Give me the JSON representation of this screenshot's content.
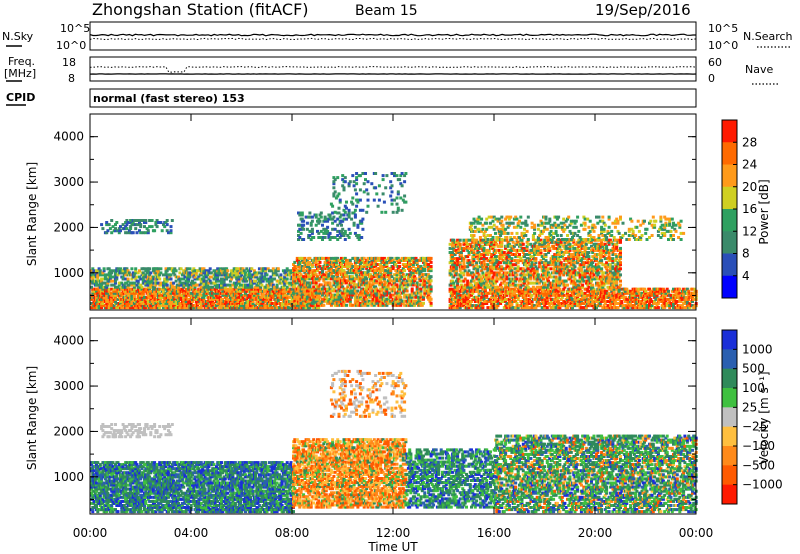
{
  "header": {
    "title": "Zhongshan Station (fitACF)",
    "beam": "Beam 15",
    "date": "19/Sep/2016"
  },
  "nsky_panel": {
    "left_label": "N.Sky",
    "left_ticks": [
      "10^5",
      "10^0"
    ],
    "right_label": "N.Search",
    "right_ticks": [
      "10^5",
      "10^0"
    ]
  },
  "freq_panel": {
    "left_label_1": "Freq.",
    "left_label_2": "[MHz]",
    "left_ticks": [
      "18",
      "8"
    ],
    "right_label": "Nave",
    "right_ticks": [
      "60",
      "0"
    ]
  },
  "cpid": {
    "label": "CPID",
    "value": "normal (fast stereo) 153"
  },
  "colors": {
    "power_scale": [
      "#0000ff",
      "#2a4fb8",
      "#3a8a6a",
      "#2fa060",
      "#cfcf22",
      "#ff9a1a",
      "#ff6a00",
      "#ff1a00"
    ],
    "velocity_scale": [
      "#ff1a00",
      "#ff5a00",
      "#ff8a1a",
      "#ffbf3f",
      "#c0c0c0",
      "#3fc040",
      "#2f8a5a",
      "#2a5fb0",
      "#1a2fd8"
    ]
  },
  "chart_data": [
    {
      "type": "heatmap",
      "name": "power",
      "ylabel": "Slant Range [km]",
      "yticks": [
        1000,
        2000,
        3000,
        4000
      ],
      "ylim": [
        180,
        4500
      ],
      "xlim": [
        0,
        24
      ],
      "colorbar_label": "Power [dB]",
      "colorbar_ticks": [
        4,
        8,
        12,
        16,
        20,
        24,
        28
      ],
      "colorbar_range": [
        0,
        32
      ]
    },
    {
      "type": "heatmap",
      "name": "velocity",
      "ylabel": "Slant Range [km]",
      "yticks": [
        1000,
        2000,
        3000,
        4000
      ],
      "ylim": [
        180,
        4500
      ],
      "xlim": [
        0,
        24
      ],
      "xlabel": "Time UT",
      "xticks": [
        "00:00",
        "04:00",
        "08:00",
        "12:00",
        "16:00",
        "20:00",
        "00:00"
      ],
      "colorbar_label": "Velocity [m s⁻¹]",
      "colorbar_ticks": [
        "1000",
        "500",
        "100",
        "25",
        "−25",
        "−100",
        "−500",
        "−1000"
      ]
    }
  ]
}
